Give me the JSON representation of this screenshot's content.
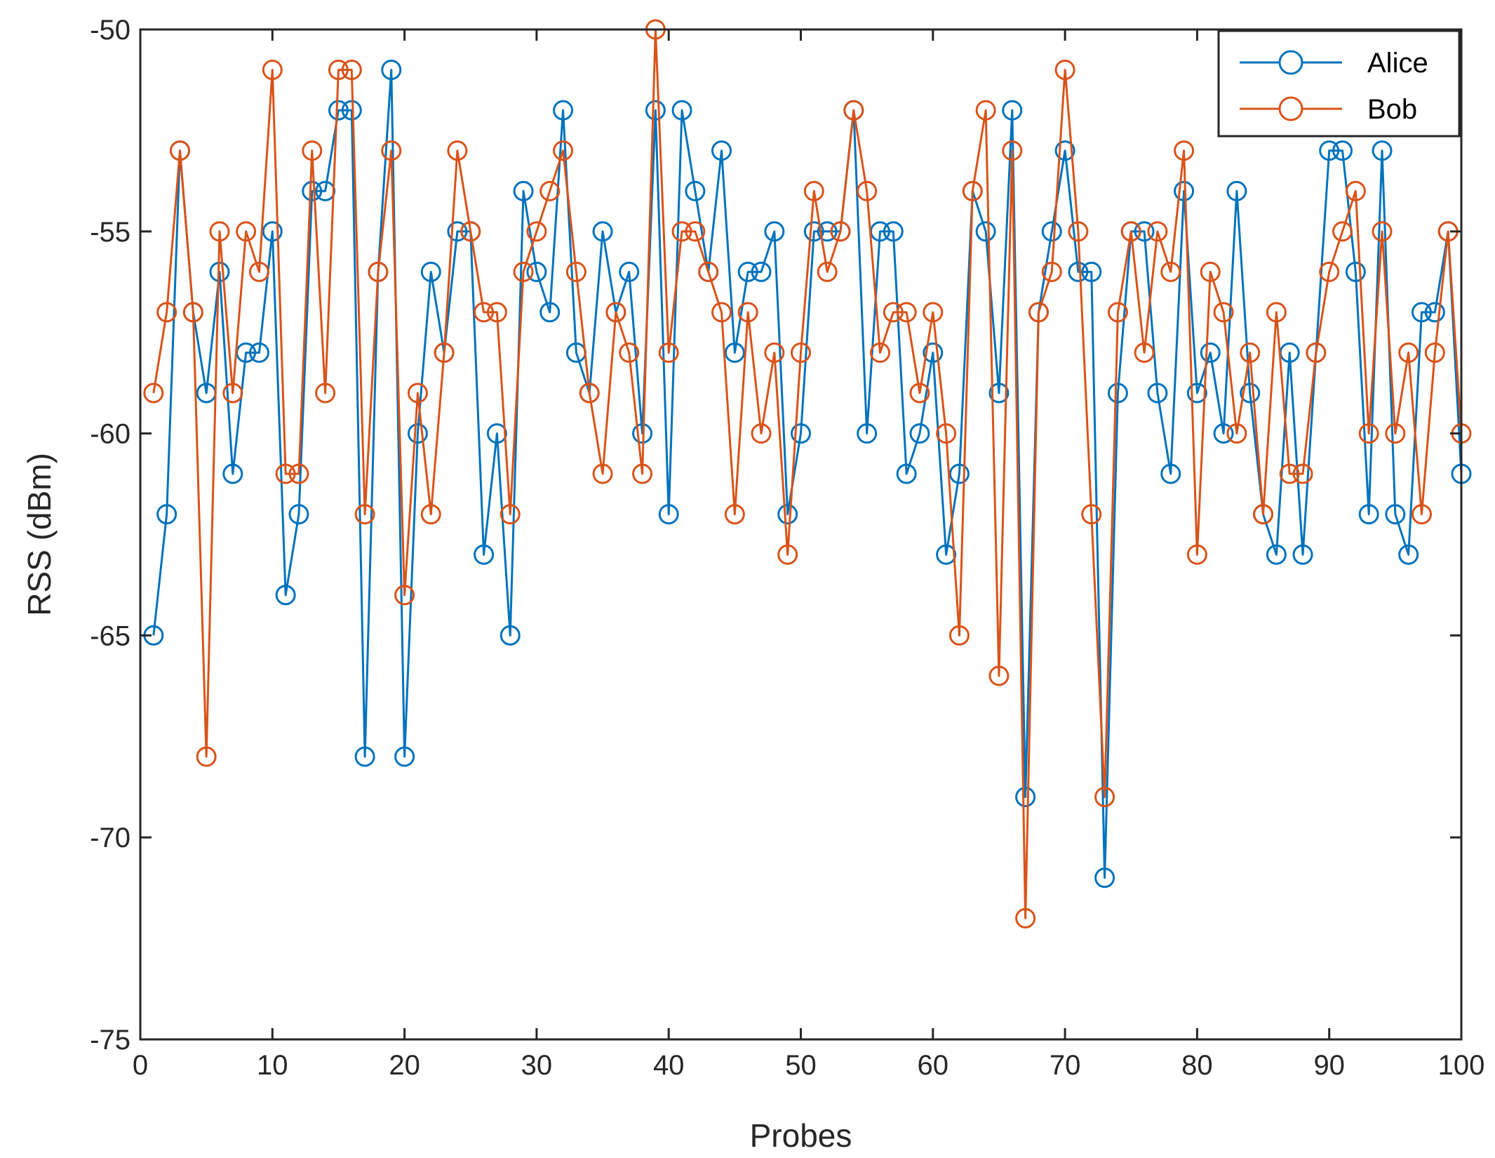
{
  "chart_data": {
    "type": "line",
    "title": "",
    "xlabel": "Probes",
    "ylabel": "RSS (dBm)",
    "xlim": [
      0,
      100
    ],
    "ylim": [
      -75,
      -50
    ],
    "xticks": [
      0,
      10,
      20,
      30,
      40,
      50,
      60,
      70,
      80,
      90,
      100
    ],
    "yticks": [
      -75,
      -70,
      -65,
      -60,
      -55,
      -50
    ],
    "grid": false,
    "legend_position": "top-right",
    "x": [
      1,
      2,
      3,
      4,
      5,
      6,
      7,
      8,
      9,
      10,
      11,
      12,
      13,
      14,
      15,
      16,
      17,
      18,
      19,
      20,
      21,
      22,
      23,
      24,
      25,
      26,
      27,
      28,
      29,
      30,
      31,
      32,
      33,
      34,
      35,
      36,
      37,
      38,
      39,
      40,
      41,
      42,
      43,
      44,
      45,
      46,
      47,
      48,
      49,
      50,
      51,
      52,
      53,
      54,
      55,
      56,
      57,
      58,
      59,
      60,
      61,
      62,
      63,
      64,
      65,
      66,
      67,
      68,
      69,
      70,
      71,
      72,
      73,
      74,
      75,
      76,
      77,
      78,
      79,
      80,
      81,
      82,
      83,
      84,
      85,
      86,
      87,
      88,
      89,
      90,
      91,
      92,
      93,
      94,
      95,
      96,
      97,
      98,
      99,
      100
    ],
    "series": [
      {
        "name": "Alice",
        "color": "#0072BD",
        "marker": "circle",
        "values": [
          -65,
          -62,
          -53,
          -57,
          -59,
          -56,
          -61,
          -58,
          -58,
          -55,
          -64,
          -62,
          -54,
          -54,
          -52,
          -52,
          -68,
          -56,
          -51,
          -68,
          -60,
          -56,
          -58,
          -55,
          -55,
          -63,
          -60,
          -65,
          -54,
          -56,
          -57,
          -52,
          -58,
          -59,
          -55,
          -57,
          -56,
          -60,
          -52,
          -62,
          -52,
          -54,
          -56,
          -53,
          -58,
          -56,
          -56,
          -55,
          -62,
          -60,
          -55,
          -55,
          -55,
          -52,
          -60,
          -55,
          -55,
          -61,
          -60,
          -58,
          -63,
          -61,
          -54,
          -55,
          -59,
          -52,
          -69,
          -57,
          -55,
          -53,
          -56,
          -56,
          -71,
          -59,
          -55,
          -55,
          -59,
          -61,
          -54,
          -59,
          -58,
          -60,
          -54,
          -59,
          -62,
          -63,
          -58,
          -63,
          -58,
          -53,
          -53,
          -56,
          -62,
          -53,
          -62,
          -63,
          -57,
          -57,
          -55,
          -61
        ]
      },
      {
        "name": "Bob",
        "color": "#D95319",
        "marker": "circle",
        "values": [
          -59,
          -57,
          -53,
          -57,
          -68,
          -55,
          -59,
          -55,
          -56,
          -51,
          -61,
          -61,
          -53,
          -59,
          -51,
          -51,
          -62,
          -56,
          -53,
          -64,
          -59,
          -62,
          -58,
          -53,
          -55,
          -57,
          -57,
          -62,
          -56,
          -55,
          -54,
          -53,
          -56,
          -59,
          -61,
          -57,
          -58,
          -61,
          -50,
          -58,
          -55,
          -55,
          -56,
          -57,
          -62,
          -57,
          -60,
          -58,
          -63,
          -58,
          -54,
          -56,
          -55,
          -52,
          -54,
          -58,
          -57,
          -57,
          -59,
          -57,
          -60,
          -65,
          -54,
          -52,
          -66,
          -53,
          -72,
          -57,
          -56,
          -51,
          -55,
          -62,
          -69,
          -57,
          -55,
          -58,
          -55,
          -56,
          -53,
          -63,
          -56,
          -57,
          -60,
          -58,
          -62,
          -57,
          -61,
          -61,
          -58,
          -56,
          -55,
          -54,
          -60,
          -55,
          -60,
          -58,
          -62,
          -58,
          -55,
          -60
        ]
      }
    ]
  }
}
